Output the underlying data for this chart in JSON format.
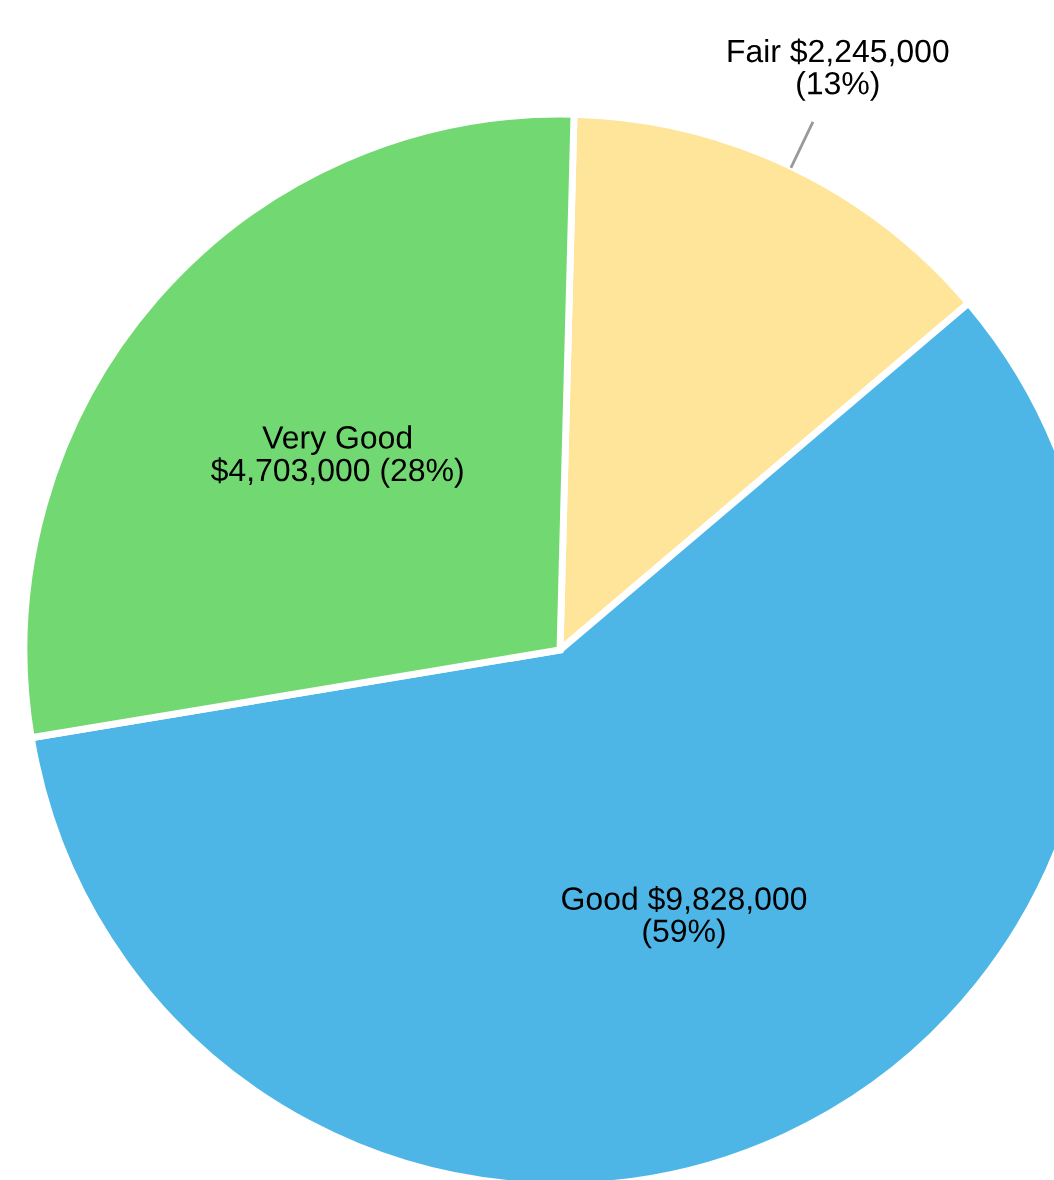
{
  "chart_data": {
    "type": "pie",
    "categories": [
      "Fair",
      "Good",
      "Very Good"
    ],
    "values": [
      2245000,
      9828000,
      4703000
    ],
    "colors": [
      "#fee599",
      "#4db6e6",
      "#72d872"
    ],
    "value_labels": [
      "$2,245,000\n(13%)",
      "$9,828,000\n(59%)",
      "$4,703,000 (28%)"
    ],
    "legend": false
  }
}
